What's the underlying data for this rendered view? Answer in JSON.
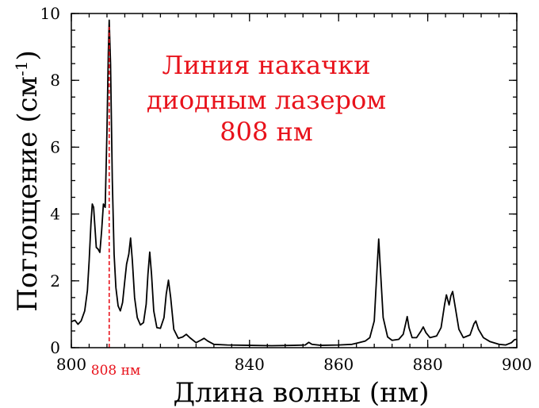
{
  "chart_data": {
    "type": "line",
    "xlabel": "Длина волны (нм)",
    "ylabel": "Поглощение (см",
    "ylabel_sup": "-1",
    "ylabel_close": ")",
    "xlim": [
      800,
      900
    ],
    "ylim": [
      0,
      10
    ],
    "x_ticks": [
      800,
      840,
      860,
      880,
      900
    ],
    "y_ticks": [
      0,
      2,
      4,
      6,
      8,
      10
    ],
    "x_minor_step": 4,
    "y_minor_step": 0.5,
    "grid": false,
    "line_color": "#000000",
    "annotation": {
      "lines": [
        "Линия накачки",
        "диодным лазером",
        "808 нм"
      ],
      "color": "#e8121b"
    },
    "marker": {
      "x": 808.5,
      "label": "808 нм",
      "color": "#e8121b",
      "style": "dashed"
    },
    "series": [
      {
        "points": [
          [
            800,
            0.78
          ],
          [
            800.8,
            0.82
          ],
          [
            801.5,
            0.7
          ],
          [
            802.2,
            0.8
          ],
          [
            803,
            1.1
          ],
          [
            803.6,
            1.7
          ],
          [
            804,
            2.6
          ],
          [
            804.4,
            3.7
          ],
          [
            804.7,
            4.3
          ],
          [
            805,
            4.2
          ],
          [
            805.3,
            3.6
          ],
          [
            805.6,
            3.0
          ],
          [
            806,
            2.95
          ],
          [
            806.4,
            2.85
          ],
          [
            806.8,
            3.5
          ],
          [
            807.2,
            4.3
          ],
          [
            807.6,
            4.2
          ],
          [
            808,
            6.5
          ],
          [
            808.3,
            8.8
          ],
          [
            808.5,
            9.8
          ],
          [
            808.8,
            8.5
          ],
          [
            809.2,
            5.0
          ],
          [
            809.6,
            2.8
          ],
          [
            810,
            1.8
          ],
          [
            810.5,
            1.25
          ],
          [
            811,
            1.1
          ],
          [
            811.5,
            1.35
          ],
          [
            812,
            2.0
          ],
          [
            812.4,
            2.5
          ],
          [
            812.9,
            2.8
          ],
          [
            813.3,
            3.28
          ],
          [
            813.7,
            2.6
          ],
          [
            814.2,
            1.5
          ],
          [
            814.8,
            0.9
          ],
          [
            815.5,
            0.68
          ],
          [
            816.2,
            0.75
          ],
          [
            816.8,
            1.3
          ],
          [
            817.2,
            2.2
          ],
          [
            817.6,
            2.86
          ],
          [
            818,
            2.2
          ],
          [
            818.5,
            1.1
          ],
          [
            819.2,
            0.6
          ],
          [
            820,
            0.58
          ],
          [
            820.8,
            0.9
          ],
          [
            821.3,
            1.6
          ],
          [
            821.8,
            2.02
          ],
          [
            822.3,
            1.5
          ],
          [
            823,
            0.55
          ],
          [
            824,
            0.28
          ],
          [
            825,
            0.32
          ],
          [
            825.8,
            0.4
          ],
          [
            826.6,
            0.3
          ],
          [
            828,
            0.15
          ],
          [
            829,
            0.22
          ],
          [
            829.8,
            0.28
          ],
          [
            830.6,
            0.2
          ],
          [
            832,
            0.1
          ],
          [
            835,
            0.08
          ],
          [
            840,
            0.07
          ],
          [
            845,
            0.06
          ],
          [
            850,
            0.07
          ],
          [
            852.5,
            0.08
          ],
          [
            853.3,
            0.16
          ],
          [
            854,
            0.1
          ],
          [
            856,
            0.07
          ],
          [
            860,
            0.08
          ],
          [
            863,
            0.1
          ],
          [
            864.5,
            0.15
          ],
          [
            866,
            0.2
          ],
          [
            867,
            0.3
          ],
          [
            868,
            0.8
          ],
          [
            868.6,
            2.3
          ],
          [
            869,
            3.25
          ],
          [
            869.4,
            2.3
          ],
          [
            870,
            0.9
          ],
          [
            871,
            0.32
          ],
          [
            872,
            0.22
          ],
          [
            873.5,
            0.25
          ],
          [
            874.5,
            0.4
          ],
          [
            875.1,
            0.75
          ],
          [
            875.4,
            0.93
          ],
          [
            875.8,
            0.6
          ],
          [
            876.5,
            0.3
          ],
          [
            877.5,
            0.3
          ],
          [
            878.5,
            0.5
          ],
          [
            879,
            0.62
          ],
          [
            879.6,
            0.45
          ],
          [
            880.5,
            0.3
          ],
          [
            882,
            0.35
          ],
          [
            883,
            0.6
          ],
          [
            883.8,
            1.3
          ],
          [
            884.2,
            1.58
          ],
          [
            884.8,
            1.28
          ],
          [
            885.2,
            1.55
          ],
          [
            885.6,
            1.68
          ],
          [
            886.2,
            1.2
          ],
          [
            887,
            0.55
          ],
          [
            888,
            0.3
          ],
          [
            889.5,
            0.38
          ],
          [
            890.4,
            0.72
          ],
          [
            890.8,
            0.8
          ],
          [
            891.4,
            0.55
          ],
          [
            892.5,
            0.3
          ],
          [
            894,
            0.18
          ],
          [
            896,
            0.1
          ],
          [
            897.5,
            0.08
          ],
          [
            898.8,
            0.15
          ],
          [
            899.5,
            0.24
          ],
          [
            900,
            0.25
          ]
        ]
      }
    ]
  }
}
